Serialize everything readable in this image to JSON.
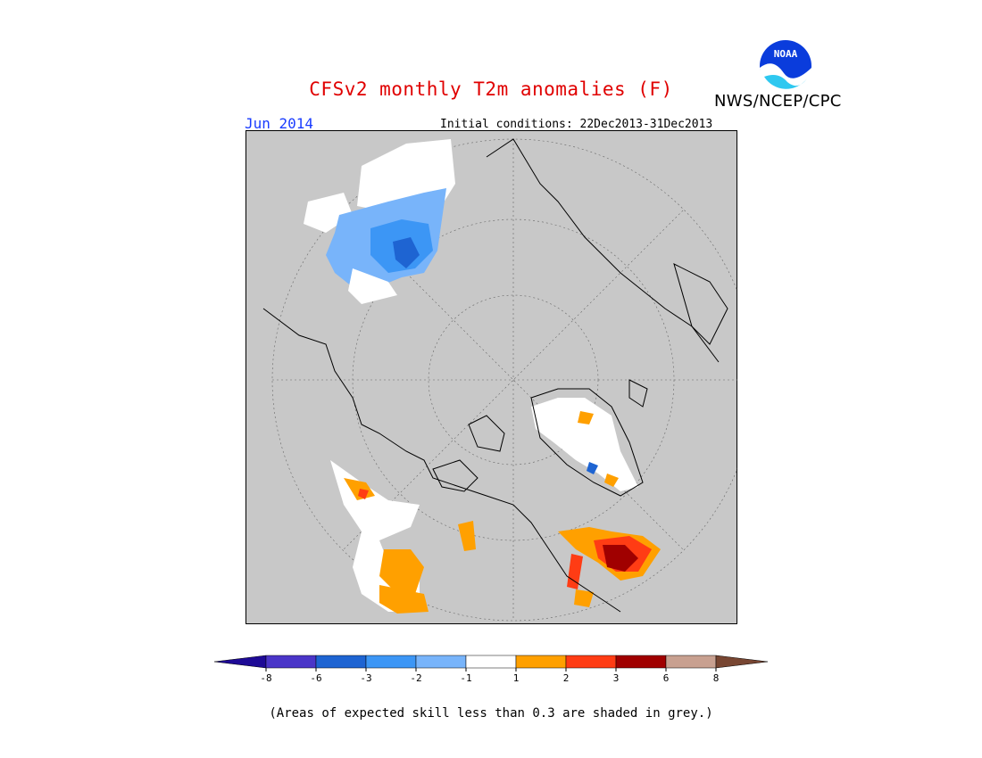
{
  "header": {
    "title": "CFSv2 monthly T2m anomalies (F)",
    "period": "Jun 2014",
    "initial_conditions": "Initial conditions: 22Dec2013-31Dec2013",
    "agency": "NWS/NCEP/CPC",
    "logo_text": "NOAA"
  },
  "colors": {
    "title": "#e00000",
    "period": "#1a3cff",
    "map_background": "#c8c8c8"
  },
  "colorbar": {
    "ticks": [
      "-8",
      "-6",
      "-3",
      "-2",
      "-1",
      "1",
      "2",
      "3",
      "6",
      "8"
    ],
    "colors": [
      "#1e0a96",
      "#4a35c8",
      "#1e64d2",
      "#3c96f5",
      "#78b4fa",
      "#ffffff",
      "#ffa000",
      "#ff3c14",
      "#a00000",
      "#c8a090",
      "#784632"
    ]
  },
  "footnote": "(Areas of expected skill less than 0.3 are shaded in grey.)"
}
